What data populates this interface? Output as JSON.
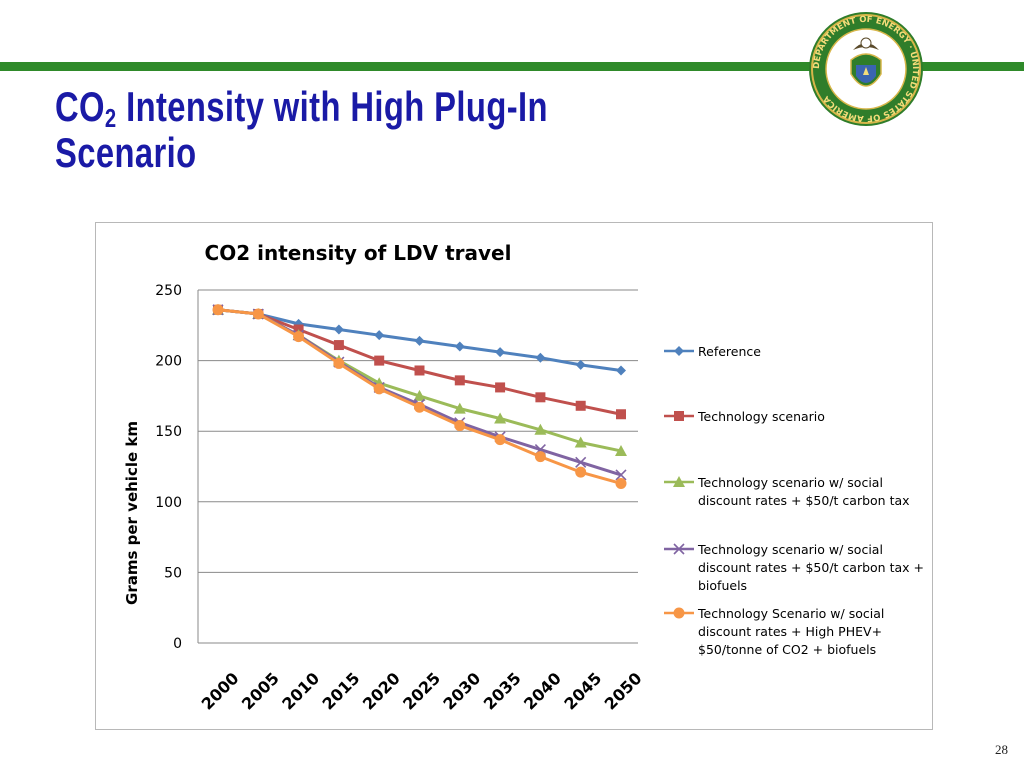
{
  "slide": {
    "title_line1_main": "CO",
    "title_line1_sub": "2",
    "title_line1_rest": " Intensity with High Plug-In",
    "title_line2": "Scenario",
    "page_number": "28",
    "seal_text": "DEPARTMENT OF ENERGY · UNITED STATES OF AMERICA",
    "accent_green": "#2f8a2a",
    "title_color": "#1a1aa6"
  },
  "chart_data": {
    "type": "line",
    "title": "CO2 intensity of LDV travel",
    "xlabel": "",
    "ylabel": "Grams per vehicle km",
    "ylim": [
      0,
      250
    ],
    "yticks": [
      0,
      50,
      100,
      150,
      200,
      250
    ],
    "grid": true,
    "legend_position": "right",
    "categories": [
      "2000",
      "2005",
      "2010",
      "2015",
      "2020",
      "2025",
      "2030",
      "2035",
      "2040",
      "2045",
      "2050"
    ],
    "series": [
      {
        "name": "Reference",
        "color": "#4f81bd",
        "marker": "diamond",
        "values": [
          236,
          233,
          226,
          222,
          218,
          214,
          210,
          206,
          202,
          197,
          193
        ]
      },
      {
        "name": "Technology scenario",
        "color": "#c0504d",
        "marker": "square",
        "values": [
          236,
          233,
          222,
          211,
          200,
          193,
          186,
          181,
          174,
          168,
          162
        ]
      },
      {
        "name": "Technology scenario w/ social discount rates + $50/t carbon tax",
        "color": "#9bbb59",
        "marker": "triangle",
        "values": [
          236,
          233,
          218,
          200,
          184,
          175,
          166,
          159,
          151,
          142,
          136
        ]
      },
      {
        "name": "Technology scenario w/ social discount rates + $50/t carbon tax + biofuels",
        "color": "#8064a2",
        "marker": "x",
        "values": [
          236,
          233,
          218,
          199,
          181,
          169,
          156,
          146,
          137,
          128,
          119
        ]
      },
      {
        "name": "Technology Scenario w/ social discount rates + High PHEV+ $50/tonne of CO2 + biofuels",
        "color": "#f79646",
        "marker": "circle",
        "values": [
          236,
          233,
          217,
          198,
          180,
          167,
          154,
          144,
          132,
          121,
          113
        ]
      }
    ],
    "legend_lines": [
      [
        "Reference"
      ],
      [
        "Technology scenario"
      ],
      [
        "Technology scenario w/ social",
        "discount rates + $50/t carbon tax"
      ],
      [
        "Technology scenario w/ social",
        "discount rates + $50/t carbon tax +",
        "biofuels"
      ],
      [
        "Technology Scenario w/ social",
        "discount rates + High PHEV+",
        "$50/tonne of CO2 + biofuels"
      ]
    ]
  }
}
